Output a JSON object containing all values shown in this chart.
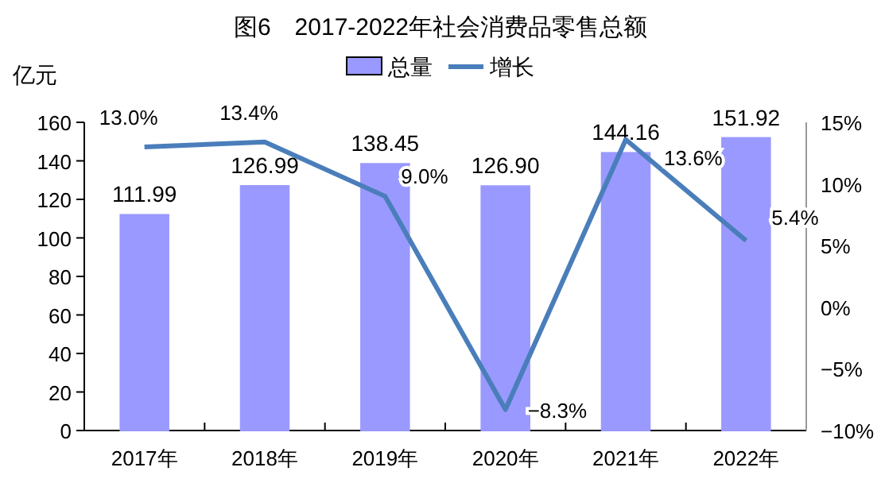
{
  "chart_data": {
    "type": "bar",
    "title": "图6　2017-2022年社会消费品零售总额",
    "ylabel": "亿元",
    "categories": [
      "2017年",
      "2018年",
      "2019年",
      "2020年",
      "2021年",
      "2022年"
    ],
    "series": [
      {
        "name": "总量",
        "color": "#9999ff",
        "values": [
          111.99,
          126.99,
          138.45,
          126.9,
          144.16,
          151.92
        ],
        "value_labels": [
          "111.99",
          "126.99",
          "138.45",
          "126.90",
          "144.16",
          "151.92"
        ]
      },
      {
        "name": "增长",
        "type": "line",
        "axis": "y2",
        "color": "#4a7ebb",
        "values": [
          13.0,
          13.4,
          9.0,
          -8.3,
          13.6,
          5.4
        ],
        "value_labels": [
          "13.0%",
          "13.4%",
          "9.0%",
          "−8.3%",
          "13.6%",
          "5.4%"
        ]
      }
    ],
    "ylim": [
      0,
      160
    ],
    "yticks": [
      0,
      20,
      40,
      60,
      80,
      100,
      120,
      140,
      160
    ],
    "y2lim": [
      -10,
      15
    ],
    "y2ticks": [
      {
        "value": -10,
        "label": "−10%"
      },
      {
        "value": -5,
        "label": "−5%"
      },
      {
        "value": 0,
        "label": "0%"
      },
      {
        "value": 5,
        "label": "5%"
      },
      {
        "value": 10,
        "label": "10%"
      },
      {
        "value": 15,
        "label": "15%"
      }
    ],
    "legend": "top",
    "marker": "none",
    "line_style": "solid"
  }
}
